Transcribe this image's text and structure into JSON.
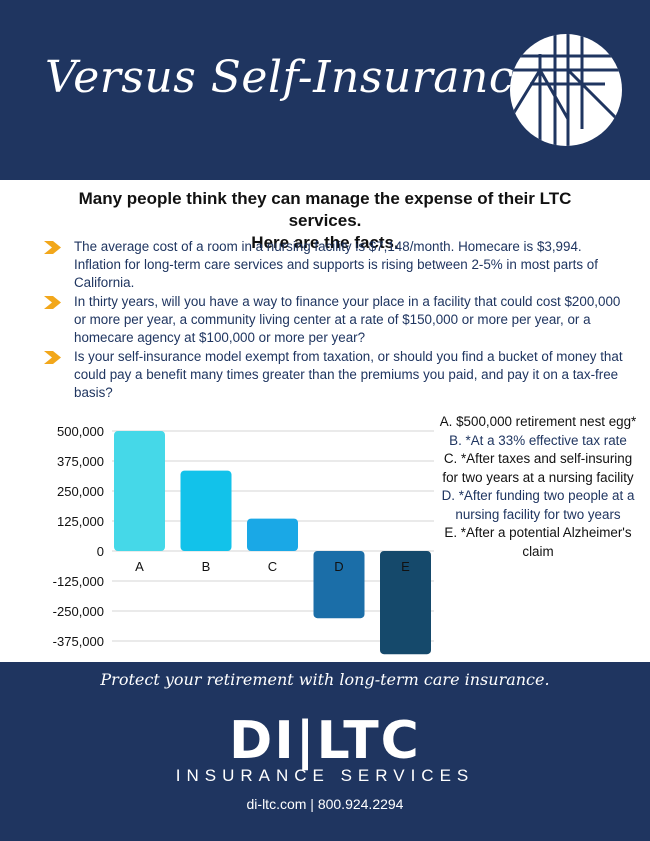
{
  "header": {
    "title": "Versus Self-Insurance"
  },
  "intro": {
    "line1": "Many people think they can manage the expense of their LTC services.",
    "line2": "Here are the facts."
  },
  "bullets": [
    "The average cost of a room in a nursing facility is $7,148/month. Homecare is $3,994. Inflation for long-term care services and supports is rising between 2-5% in most parts of California.",
    "In thirty years, will you have a way to finance your place in a facility that could cost $200,000 or more per year, a community living center at a rate of $150,000 or more per year, or a homecare agency at $100,000 or more per year?",
    "Is your self-insurance model exempt from taxation, or should you find a bucket of money that could pay a benefit many times greater than the premiums you paid, and pay it on a tax-free basis?"
  ],
  "chart_data": {
    "type": "bar",
    "categories": [
      "A",
      "B",
      "C",
      "D",
      "E"
    ],
    "values": [
      500000,
      335000,
      135000,
      -280000,
      -430000
    ],
    "colors": [
      "#45d8e8",
      "#12c2ea",
      "#1aa8e6",
      "#1b6ea8",
      "#15496b"
    ],
    "ylim": [
      -430000,
      520000
    ],
    "yticks": [
      500000,
      375000,
      250000,
      125000,
      0,
      -125000,
      -250000,
      -375000
    ],
    "ytick_labels": [
      "500,000",
      "375,000",
      "250,000",
      "125,000",
      "0",
      "-125,000",
      "-250,000",
      "-375,000"
    ],
    "grid": true
  },
  "legend": [
    "A. $500,000 retirement nest egg*",
    "B. *At a 33% effective tax rate",
    "C. *After taxes and self-insuring for two years at a nursing facility",
    "D. *After funding two people at a nursing facility for two years",
    "E. *After a potential Alzheimer's claim"
  ],
  "footer": {
    "tagline": "Protect your retirement with long-term care insurance.",
    "brand": "DI|LTC",
    "brand_sub": "INSURANCE SERVICES",
    "contact": "di-ltc.com | 800.924.2294"
  },
  "colors": {
    "navy": "#1f3560",
    "chevron": "#f2a71b"
  }
}
